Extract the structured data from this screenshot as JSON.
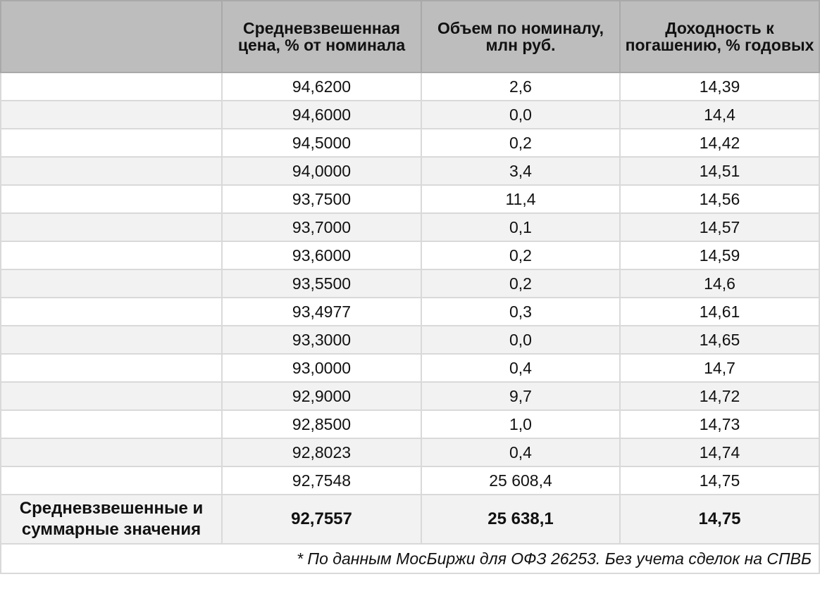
{
  "table": {
    "headers": [
      "",
      "Средневзвешенная цена, % от номинала",
      "Объем по номиналу, млн руб.",
      "Доходность к погашению, % годовых"
    ],
    "rows": [
      [
        "",
        "94,6200",
        "2,6",
        "14,39"
      ],
      [
        "",
        "94,6000",
        "0,0",
        "14,4"
      ],
      [
        "",
        "94,5000",
        "0,2",
        "14,42"
      ],
      [
        "",
        "94,0000",
        "3,4",
        "14,51"
      ],
      [
        "",
        "93,7500",
        "11,4",
        "14,56"
      ],
      [
        "",
        "93,7000",
        "0,1",
        "14,57"
      ],
      [
        "",
        "93,6000",
        "0,2",
        "14,59"
      ],
      [
        "",
        "93,5500",
        "0,2",
        "14,6"
      ],
      [
        "",
        "93,4977",
        "0,3",
        "14,61"
      ],
      [
        "",
        "93,3000",
        "0,0",
        "14,65"
      ],
      [
        "",
        "93,0000",
        "0,4",
        "14,7"
      ],
      [
        "",
        "92,9000",
        "9,7",
        "14,72"
      ],
      [
        "",
        "92,8500",
        "1,0",
        "14,73"
      ],
      [
        "",
        "92,8023",
        "0,4",
        "14,74"
      ],
      [
        "",
        "92,7548",
        "25 608,4",
        "14,75"
      ]
    ],
    "total": {
      "label": "Средневзвешенные и суммарные значения",
      "price": "92,7557",
      "volume": "25 638,1",
      "yield": "14,75"
    },
    "footnote": "* По данным МосБиржи для ОФЗ 26253. Без учета сделок на СПВБ"
  },
  "colors": {
    "header_bg": "#bdbdbd",
    "row_alt_bg": "#f2f2f2",
    "border": "#d9d9d9"
  }
}
